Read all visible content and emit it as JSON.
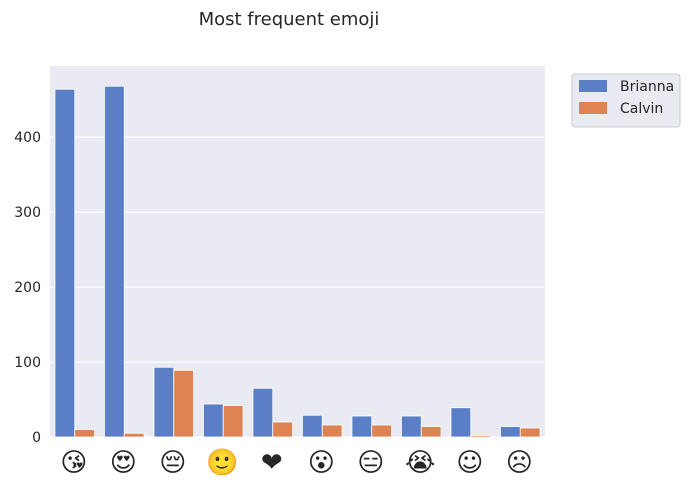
{
  "chart_data": {
    "type": "bar",
    "title": "Most frequent emoji",
    "xlabel": "",
    "ylabel": "",
    "categories": [
      "😘",
      "😍",
      "😔",
      "🙂",
      "❤",
      "😮",
      "😑",
      "😭",
      "☺",
      "☹"
    ],
    "series": [
      {
        "name": "Brianna",
        "color": "#5a7fc7",
        "values": [
          464,
          468,
          93,
          44,
          65,
          29,
          28,
          28,
          39,
          14
        ]
      },
      {
        "name": "Calvin",
        "color": "#dd8452",
        "values": [
          10,
          5,
          89,
          42,
          20,
          16,
          16,
          14,
          2,
          12
        ]
      }
    ],
    "ylim": [
      0,
      495
    ],
    "yticks": [
      0,
      100,
      200,
      300,
      400
    ],
    "grid": true,
    "legend": "outside-top-right",
    "background": "#eaeaf2"
  }
}
